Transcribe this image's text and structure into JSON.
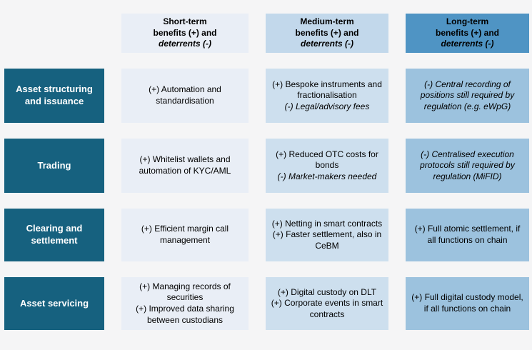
{
  "colors": {
    "page_background": "#f5f5f6",
    "row_header_background": "#16617f",
    "row_header_text": "#ffffff",
    "cell_text": "#000000"
  },
  "columns": [
    {
      "id": "short-term",
      "title": "Short-term",
      "subtitle": "benefits (+) and",
      "deterrents_label": "deterrents (-)",
      "header_bg": "#e9eef6",
      "cell_bg": "#e9eef6"
    },
    {
      "id": "medium-term",
      "title": "Medium-term",
      "subtitle": "benefits (+) and",
      "deterrents_label": "deterrents (-)",
      "header_bg": "#c2d8eb",
      "cell_bg": "#cddfee"
    },
    {
      "id": "long-term",
      "title": "Long-term",
      "subtitle": "benefits (+) and",
      "deterrents_label": "deterrents (-)",
      "header_bg": "#4f94c4",
      "cell_bg": "#9cc2de"
    }
  ],
  "rows": [
    {
      "id": "asset-structuring-and-issuance",
      "header": "Asset structuring and issuance",
      "cells": [
        {
          "entries": [
            {
              "text": "(+) Automation and standardisation",
              "italic": false
            }
          ]
        },
        {
          "entries": [
            {
              "text": "(+) Bespoke instruments and fractionalisation",
              "italic": false
            },
            {
              "text": "(-) Legal/advisory fees",
              "italic": true
            }
          ]
        },
        {
          "entries": [
            {
              "text": "(-) Central recording of positions still required by regulation (e.g. eWpG)",
              "italic": true
            }
          ]
        }
      ]
    },
    {
      "id": "trading",
      "header": "Trading",
      "cells": [
        {
          "entries": [
            {
              "text": "(+) Whitelist wallets and automation of KYC/AML",
              "italic": false
            }
          ]
        },
        {
          "entries": [
            {
              "text": "(+) Reduced OTC costs for bonds",
              "italic": false
            },
            {
              "text": "(-) Market-makers needed",
              "italic": true
            }
          ]
        },
        {
          "entries": [
            {
              "text": "(-) Centralised execution protocols still required by regulation (MiFID)",
              "italic": true
            }
          ]
        }
      ]
    },
    {
      "id": "clearing-and-settlement",
      "header": "Clearing and settlement",
      "cells": [
        {
          "entries": [
            {
              "text": "(+) Efficient margin call management",
              "italic": false
            }
          ]
        },
        {
          "entries": [
            {
              "text": "(+) Netting in smart contracts",
              "italic": false
            },
            {
              "text": "(+) Faster settlement, also in CeBM",
              "italic": false
            }
          ]
        },
        {
          "entries": [
            {
              "text": "(+) Full atomic settlement, if all functions on chain",
              "italic": false
            }
          ]
        }
      ]
    },
    {
      "id": "asset-servicing",
      "header": "Asset servicing",
      "cells": [
        {
          "entries": [
            {
              "text": "(+) Managing records of securities",
              "italic": false
            },
            {
              "text": "(+) Improved data sharing between custodians",
              "italic": false
            }
          ]
        },
        {
          "entries": [
            {
              "text": "(+) Digital custody on DLT",
              "italic": false
            },
            {
              "text": "(+) Corporate events in smart contracts",
              "italic": false
            }
          ]
        },
        {
          "entries": [
            {
              "text": "(+) Full digital custody model, if all functions on chain",
              "italic": false
            }
          ]
        }
      ]
    }
  ]
}
